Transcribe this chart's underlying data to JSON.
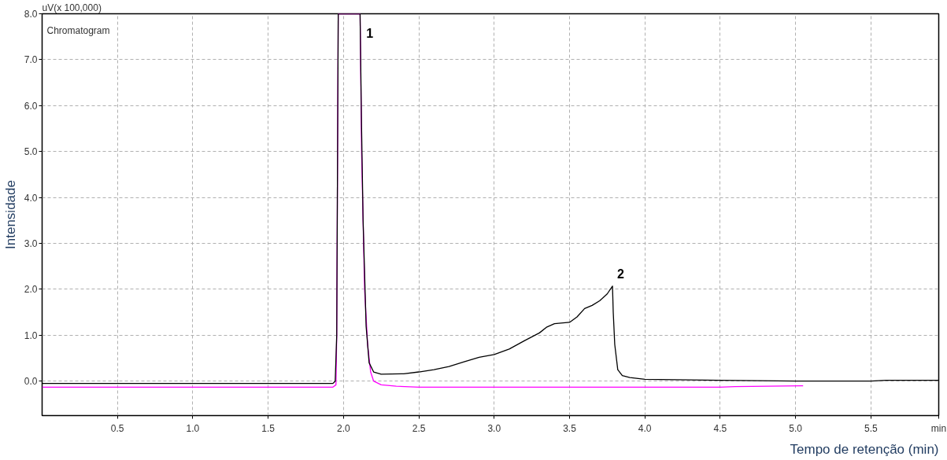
{
  "chart_data": {
    "type": "line",
    "ylabel": "Intensidade",
    "xlabel": "Tempo de retenção (min)",
    "annotations": [
      "uV(x 100,000)",
      "Chromatogram",
      {
        "text": "1",
        "x": 2.12,
        "y": 7.3
      },
      {
        "text": "2",
        "x": 3.785,
        "y": 2.07
      }
    ],
    "xlim": [
      0,
      5.95
    ],
    "ylim": [
      -0.75,
      8.0
    ],
    "xticks": [
      {
        "value": 0.5,
        "label": "0.5"
      },
      {
        "value": 1,
        "label": "1.0"
      },
      {
        "value": 1.5,
        "label": "1.5"
      },
      {
        "value": 2,
        "label": "2.0"
      },
      {
        "value": 2.5,
        "label": "2.5"
      },
      {
        "value": 3,
        "label": "3.0"
      },
      {
        "value": 3.5,
        "label": "3.5"
      },
      {
        "value": 4,
        "label": "4.0"
      },
      {
        "value": 4.5,
        "label": "4.5"
      },
      {
        "value": 5,
        "label": "5.0"
      },
      {
        "value": 5.5,
        "label": "5.5"
      },
      {
        "value": 5.95,
        "label": "min"
      }
    ],
    "yticks": [
      {
        "value": 0,
        "label": "0.0"
      },
      {
        "value": 1,
        "label": "1.0"
      },
      {
        "value": 2,
        "label": "2.0"
      },
      {
        "value": 3,
        "label": "3.0"
      },
      {
        "value": 4,
        "label": "4.0"
      },
      {
        "value": 5,
        "label": "5.0"
      },
      {
        "value": 6,
        "label": "6.0"
      },
      {
        "value": 7,
        "label": "7.0"
      },
      {
        "value": 8,
        "label": "8.0"
      }
    ],
    "grid": true,
    "series": [
      {
        "color": "#ff00ff",
        "x": [
          0,
          1.93,
          1.95,
          1.955,
          1.965,
          2.11,
          2.12,
          2.14,
          2.16,
          2.18,
          2.2,
          2.25,
          2.35,
          2.5,
          4.5,
          4.6,
          5.05
        ],
        "values": [
          -0.13,
          -0.13,
          -0.08,
          1,
          8.0,
          8.0,
          5,
          2,
          0.8,
          0.2,
          0.0,
          -0.08,
          -0.11,
          -0.13,
          -0.13,
          -0.12,
          -0.1
        ]
      },
      {
        "color": "#000000",
        "x": [
          0,
          1.93,
          1.945,
          1.955,
          1.965,
          2.11,
          2.12,
          2.13,
          2.15,
          2.17,
          2.2,
          2.25,
          2.4,
          2.5,
          2.6,
          2.7,
          2.8,
          2.9,
          3.0,
          3.1,
          3.2,
          3.3,
          3.35,
          3.4,
          3.5,
          3.55,
          3.6,
          3.65,
          3.7,
          3.75,
          3.785,
          3.79,
          3.8,
          3.82,
          3.85,
          3.9,
          4.0,
          4.5,
          5.0,
          5.5,
          5.6,
          5.95
        ],
        "values": [
          -0.05,
          -0.05,
          0.0,
          1,
          8.0,
          8.0,
          5.5,
          3.5,
          1.2,
          0.4,
          0.2,
          0.15,
          0.16,
          0.2,
          0.25,
          0.32,
          0.42,
          0.52,
          0.58,
          0.7,
          0.88,
          1.05,
          1.18,
          1.25,
          1.28,
          1.4,
          1.58,
          1.65,
          1.75,
          1.9,
          2.07,
          1.5,
          0.8,
          0.25,
          0.12,
          0.08,
          0.04,
          0.02,
          0.0,
          0.0,
          0.02,
          0.02
        ]
      }
    ]
  }
}
